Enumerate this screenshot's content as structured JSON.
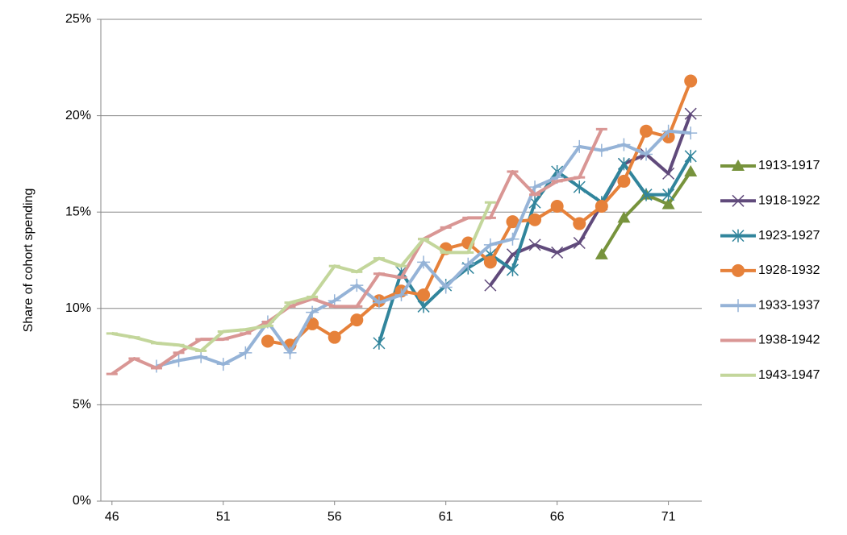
{
  "chart_data": {
    "type": "line",
    "y_label": "Share of cohort spending",
    "x": [
      46,
      47,
      48,
      49,
      50,
      51,
      52,
      53,
      54,
      55,
      56,
      57,
      58,
      59,
      60,
      61,
      62,
      63,
      64,
      65,
      66,
      67,
      68,
      69,
      70,
      71,
      72
    ],
    "xlim": [
      45.5,
      72.5
    ],
    "xticks": [
      46,
      51,
      56,
      61,
      66,
      71
    ],
    "ylim": [
      0,
      25
    ],
    "yticks": [
      {
        "value": 0,
        "label": "0%"
      },
      {
        "value": 5,
        "label": "5%"
      },
      {
        "value": 10,
        "label": "10%"
      },
      {
        "value": 15,
        "label": "15%"
      },
      {
        "value": 20,
        "label": "20%"
      },
      {
        "value": 25,
        "label": "25%"
      }
    ],
    "grid": true,
    "legend": "right",
    "series": [
      {
        "name": "1913-1917",
        "color": "#77933c",
        "marker": "triangle",
        "values": [
          null,
          null,
          null,
          null,
          null,
          null,
          null,
          null,
          null,
          null,
          null,
          null,
          null,
          null,
          null,
          null,
          null,
          null,
          null,
          null,
          null,
          null,
          12.8,
          14.7,
          15.9,
          15.4,
          17.1
        ]
      },
      {
        "name": "1918-1922",
        "color": "#604a7b",
        "marker": "x",
        "values": [
          null,
          null,
          null,
          null,
          null,
          null,
          null,
          null,
          null,
          null,
          null,
          null,
          null,
          null,
          null,
          null,
          null,
          11.2,
          12.8,
          13.3,
          12.9,
          13.4,
          15.4,
          17.5,
          18.0,
          17.0,
          20.1
        ]
      },
      {
        "name": "1923-1927",
        "color": "#31859c",
        "marker": "asterisk",
        "values": [
          null,
          null,
          null,
          null,
          null,
          null,
          null,
          null,
          null,
          null,
          null,
          null,
          8.2,
          11.9,
          10.1,
          11.2,
          12.1,
          12.8,
          12.0,
          15.5,
          17.1,
          16.3,
          15.5,
          17.5,
          15.9,
          15.9,
          17.9
        ]
      },
      {
        "name": "1928-1932",
        "color": "#e6813a",
        "marker": "circle",
        "values": [
          null,
          null,
          null,
          null,
          null,
          null,
          null,
          8.3,
          8.1,
          9.2,
          8.5,
          9.4,
          10.4,
          10.9,
          10.7,
          13.1,
          13.4,
          12.4,
          14.5,
          14.6,
          15.3,
          14.4,
          15.3,
          16.6,
          19.2,
          18.9,
          21.8
        ]
      },
      {
        "name": "1933-1937",
        "color": "#95b3d7",
        "marker": "plus",
        "values": [
          null,
          null,
          7.0,
          7.3,
          7.5,
          7.1,
          7.7,
          9.3,
          7.7,
          9.8,
          10.4,
          11.2,
          10.3,
          10.7,
          12.4,
          11.1,
          12.3,
          13.3,
          13.6,
          16.3,
          16.8,
          18.4,
          18.2,
          18.5,
          18.0,
          19.2,
          19.1
        ]
      },
      {
        "name": "1938-1942",
        "color": "#d99694",
        "marker": "dash",
        "values": [
          6.6,
          7.4,
          6.9,
          7.7,
          8.4,
          8.4,
          8.7,
          9.3,
          10.1,
          10.5,
          10.1,
          10.1,
          11.8,
          11.6,
          13.6,
          14.2,
          14.7,
          14.7,
          17.1,
          15.9,
          16.6,
          16.8,
          19.3,
          null,
          null,
          null,
          null
        ]
      },
      {
        "name": "1943-1947",
        "color": "#c3d69b",
        "marker": "dash",
        "values": [
          8.7,
          8.5,
          8.2,
          8.1,
          7.8,
          8.8,
          8.9,
          9.1,
          10.3,
          10.6,
          12.2,
          11.9,
          12.6,
          12.2,
          13.6,
          12.9,
          12.9,
          15.5,
          null,
          null,
          null,
          null,
          null,
          null,
          null,
          null,
          null
        ]
      }
    ]
  }
}
